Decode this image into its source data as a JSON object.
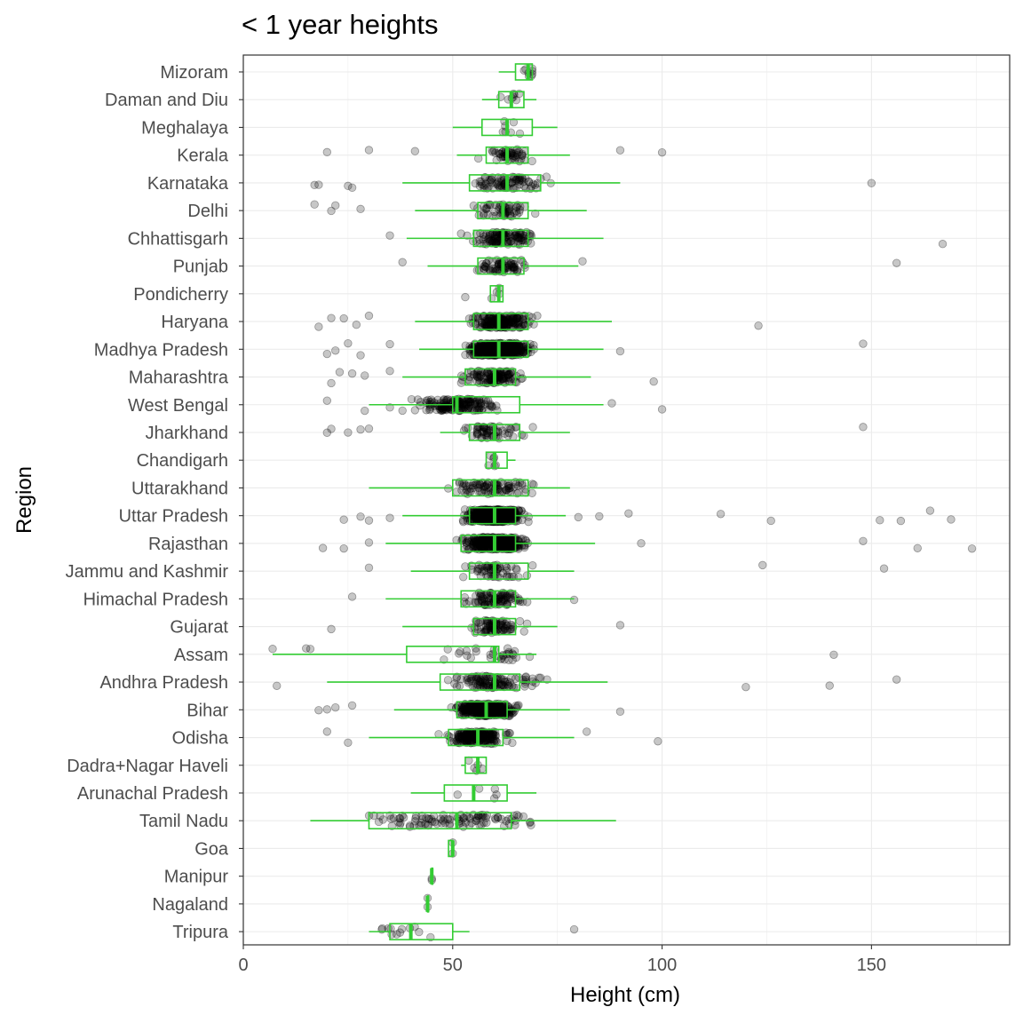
{
  "chart_data": {
    "type": "box",
    "title": "< 1 year heights",
    "xlabel": "Height (cm)",
    "ylabel": "Region",
    "xlim": [
      0,
      183
    ],
    "xticks": [
      0,
      50,
      100,
      150
    ],
    "grid": true,
    "box_color": "#33cc33",
    "point_color": "#000000",
    "point_alpha": 0.22,
    "categories": [
      "Mizoram",
      "Daman and Diu",
      "Meghalaya",
      "Kerala",
      "Karnataka",
      "Delhi",
      "Chhattisgarh",
      "Punjab",
      "Pondicherry",
      "Haryana",
      "Madhya Pradesh",
      "Maharashtra",
      "West Bengal",
      "Jharkhand",
      "Chandigarh",
      "Uttarakhand",
      "Uttar Pradesh",
      "Rajasthan",
      "Jammu and Kashmir",
      "Himachal Pradesh",
      "Gujarat",
      "Assam",
      "Andhra Pradesh",
      "Bihar",
      "Odisha",
      "Dadra+Nagar Haveli",
      "Arunachal Pradesh",
      "Tamil Nadu",
      "Goa",
      "Manipur",
      "Nagaland",
      "Tripura"
    ],
    "boxes": [
      {
        "region": "Mizoram",
        "whisker_low": 61,
        "q1": 65,
        "median": 68,
        "q3": 69,
        "whisker_high": 69,
        "outliers": [],
        "n": 8
      },
      {
        "region": "Daman and Diu",
        "whisker_low": 57,
        "q1": 61,
        "median": 64,
        "q3": 67,
        "whisker_high": 70,
        "outliers": [],
        "n": 8
      },
      {
        "region": "Meghalaya",
        "whisker_low": 50,
        "q1": 57,
        "median": 63,
        "q3": 69,
        "whisker_high": 75,
        "outliers": [],
        "n": 7
      },
      {
        "region": "Kerala",
        "whisker_low": 51,
        "q1": 58,
        "median": 63,
        "q3": 68,
        "whisker_high": 78,
        "outliers": [
          20,
          30,
          41,
          90,
          100
        ],
        "n": 50
      },
      {
        "region": "Karnataka",
        "whisker_low": 38,
        "q1": 54,
        "median": 63,
        "q3": 71,
        "whisker_high": 90,
        "outliers": [
          17,
          18,
          25,
          26,
          150
        ],
        "n": 80
      },
      {
        "region": "Delhi",
        "whisker_low": 41,
        "q1": 56,
        "median": 62,
        "q3": 68,
        "whisker_high": 82,
        "outliers": [
          17,
          21,
          22,
          28
        ],
        "n": 55
      },
      {
        "region": "Chhattisgarh",
        "whisker_low": 39,
        "q1": 55,
        "median": 62,
        "q3": 68,
        "whisker_high": 86,
        "outliers": [
          35,
          167
        ],
        "n": 120
      },
      {
        "region": "Punjab",
        "whisker_low": 44,
        "q1": 56,
        "median": 62,
        "q3": 67,
        "whisker_high": 80,
        "outliers": [
          38,
          81,
          156
        ],
        "n": 70
      },
      {
        "region": "Pondicherry",
        "whisker_low": 59,
        "q1": 59,
        "median": 61,
        "q3": 62,
        "whisker_high": 62,
        "outliers": [
          53
        ],
        "n": 4
      },
      {
        "region": "Haryana",
        "whisker_low": 41,
        "q1": 55,
        "median": 61,
        "q3": 68,
        "whisker_high": 88,
        "outliers": [
          18,
          21,
          24,
          27,
          30,
          123
        ],
        "n": 200
      },
      {
        "region": "Madhya Pradesh",
        "whisker_low": 42,
        "q1": 55,
        "median": 61,
        "q3": 68,
        "whisker_high": 86,
        "outliers": [
          20,
          22,
          25,
          28,
          35,
          90,
          148
        ],
        "n": 400
      },
      {
        "region": "Maharashtra",
        "whisker_low": 38,
        "q1": 53,
        "median": 60,
        "q3": 65,
        "whisker_high": 83,
        "outliers": [
          21,
          23,
          26,
          29,
          35,
          98
        ],
        "n": 120
      },
      {
        "region": "West Bengal",
        "whisker_low": 30,
        "q1": 50,
        "median": 51,
        "q3": 66,
        "whisker_high": 86,
        "outliers": [
          20,
          29,
          35,
          38,
          88,
          100
        ],
        "n": 160
      },
      {
        "region": "Jharkhand",
        "whisker_low": 47,
        "q1": 54,
        "median": 60,
        "q3": 66,
        "whisker_high": 78,
        "outliers": [
          20,
          21,
          25,
          28,
          30,
          148
        ],
        "n": 60
      },
      {
        "region": "Chandigarh",
        "whisker_low": 58,
        "q1": 58,
        "median": 60,
        "q3": 63,
        "whisker_high": 65,
        "outliers": [],
        "n": 6
      },
      {
        "region": "Uttarakhand",
        "whisker_low": 30,
        "q1": 50,
        "median": 60,
        "q3": 68,
        "whisker_high": 78,
        "outliers": [],
        "n": 90
      },
      {
        "region": "Uttar Pradesh",
        "whisker_low": 38,
        "q1": 54,
        "median": 60,
        "q3": 65,
        "whisker_high": 77,
        "outliers": [
          24,
          28,
          30,
          35,
          80,
          85,
          92,
          114,
          126,
          152,
          157,
          164,
          169
        ],
        "n": 600
      },
      {
        "region": "Rajasthan",
        "whisker_low": 34,
        "q1": 52,
        "median": 60,
        "q3": 65,
        "whisker_high": 84,
        "outliers": [
          19,
          24,
          30,
          95,
          148,
          161,
          174
        ],
        "n": 350
      },
      {
        "region": "Jammu and Kashmir",
        "whisker_low": 40,
        "q1": 54,
        "median": 60,
        "q3": 68,
        "whisker_high": 79,
        "outliers": [
          30,
          124,
          153
        ],
        "n": 60
      },
      {
        "region": "Himachal Pradesh",
        "whisker_low": 34,
        "q1": 52,
        "median": 60,
        "q3": 65,
        "whisker_high": 79,
        "outliers": [
          26,
          79
        ],
        "n": 90
      },
      {
        "region": "Gujarat",
        "whisker_low": 38,
        "q1": 55,
        "median": 60,
        "q3": 65,
        "whisker_high": 75,
        "outliers": [
          21,
          90
        ],
        "n": 80
      },
      {
        "region": "Assam",
        "whisker_low": 7,
        "q1": 39,
        "median": 60,
        "q3": 61,
        "whisker_high": 70,
        "outliers": [
          7,
          15,
          16,
          141
        ],
        "n": 30
      },
      {
        "region": "Andhra Pradesh",
        "whisker_low": 20,
        "q1": 47,
        "median": 60,
        "q3": 66,
        "whisker_high": 87,
        "outliers": [
          8,
          120,
          140,
          156
        ],
        "n": 110
      },
      {
        "region": "Bihar",
        "whisker_low": 36,
        "q1": 51,
        "median": 58,
        "q3": 63,
        "whisker_high": 78,
        "outliers": [
          18,
          20,
          22,
          26,
          90
        ],
        "n": 350
      },
      {
        "region": "Odisha",
        "whisker_low": 30,
        "q1": 49,
        "median": 56,
        "q3": 62,
        "whisker_high": 79,
        "outliers": [
          20,
          25,
          82,
          99
        ],
        "n": 200
      },
      {
        "region": "Dadra+Nagar Haveli",
        "whisker_low": 52,
        "q1": 53,
        "median": 56,
        "q3": 58,
        "whisker_high": 58,
        "outliers": [],
        "n": 5
      },
      {
        "region": "Arunachal Pradesh",
        "whisker_low": 40,
        "q1": 48,
        "median": 55,
        "q3": 63,
        "whisker_high": 70,
        "outliers": [],
        "n": 5
      },
      {
        "region": "Tamil Nadu",
        "whisker_low": 16,
        "q1": 30,
        "median": 51,
        "q3": 64,
        "whisker_high": 89,
        "outliers": [],
        "n": 100
      },
      {
        "region": "Goa",
        "whisker_low": 49,
        "q1": 49,
        "median": 50,
        "q3": 50,
        "whisker_high": 50,
        "outliers": [],
        "n": 2
      },
      {
        "region": "Manipur",
        "whisker_low": 45,
        "q1": 45,
        "median": 45,
        "q3": 45,
        "whisker_high": 45,
        "outliers": [],
        "n": 2
      },
      {
        "region": "Nagaland",
        "whisker_low": 44,
        "q1": 44,
        "median": 44,
        "q3": 44,
        "whisker_high": 44,
        "outliers": [],
        "n": 2
      },
      {
        "region": "Tripura",
        "whisker_low": 30,
        "q1": 35,
        "median": 40,
        "q3": 50,
        "whisker_high": 54,
        "outliers": [
          79
        ],
        "n": 12
      }
    ]
  }
}
